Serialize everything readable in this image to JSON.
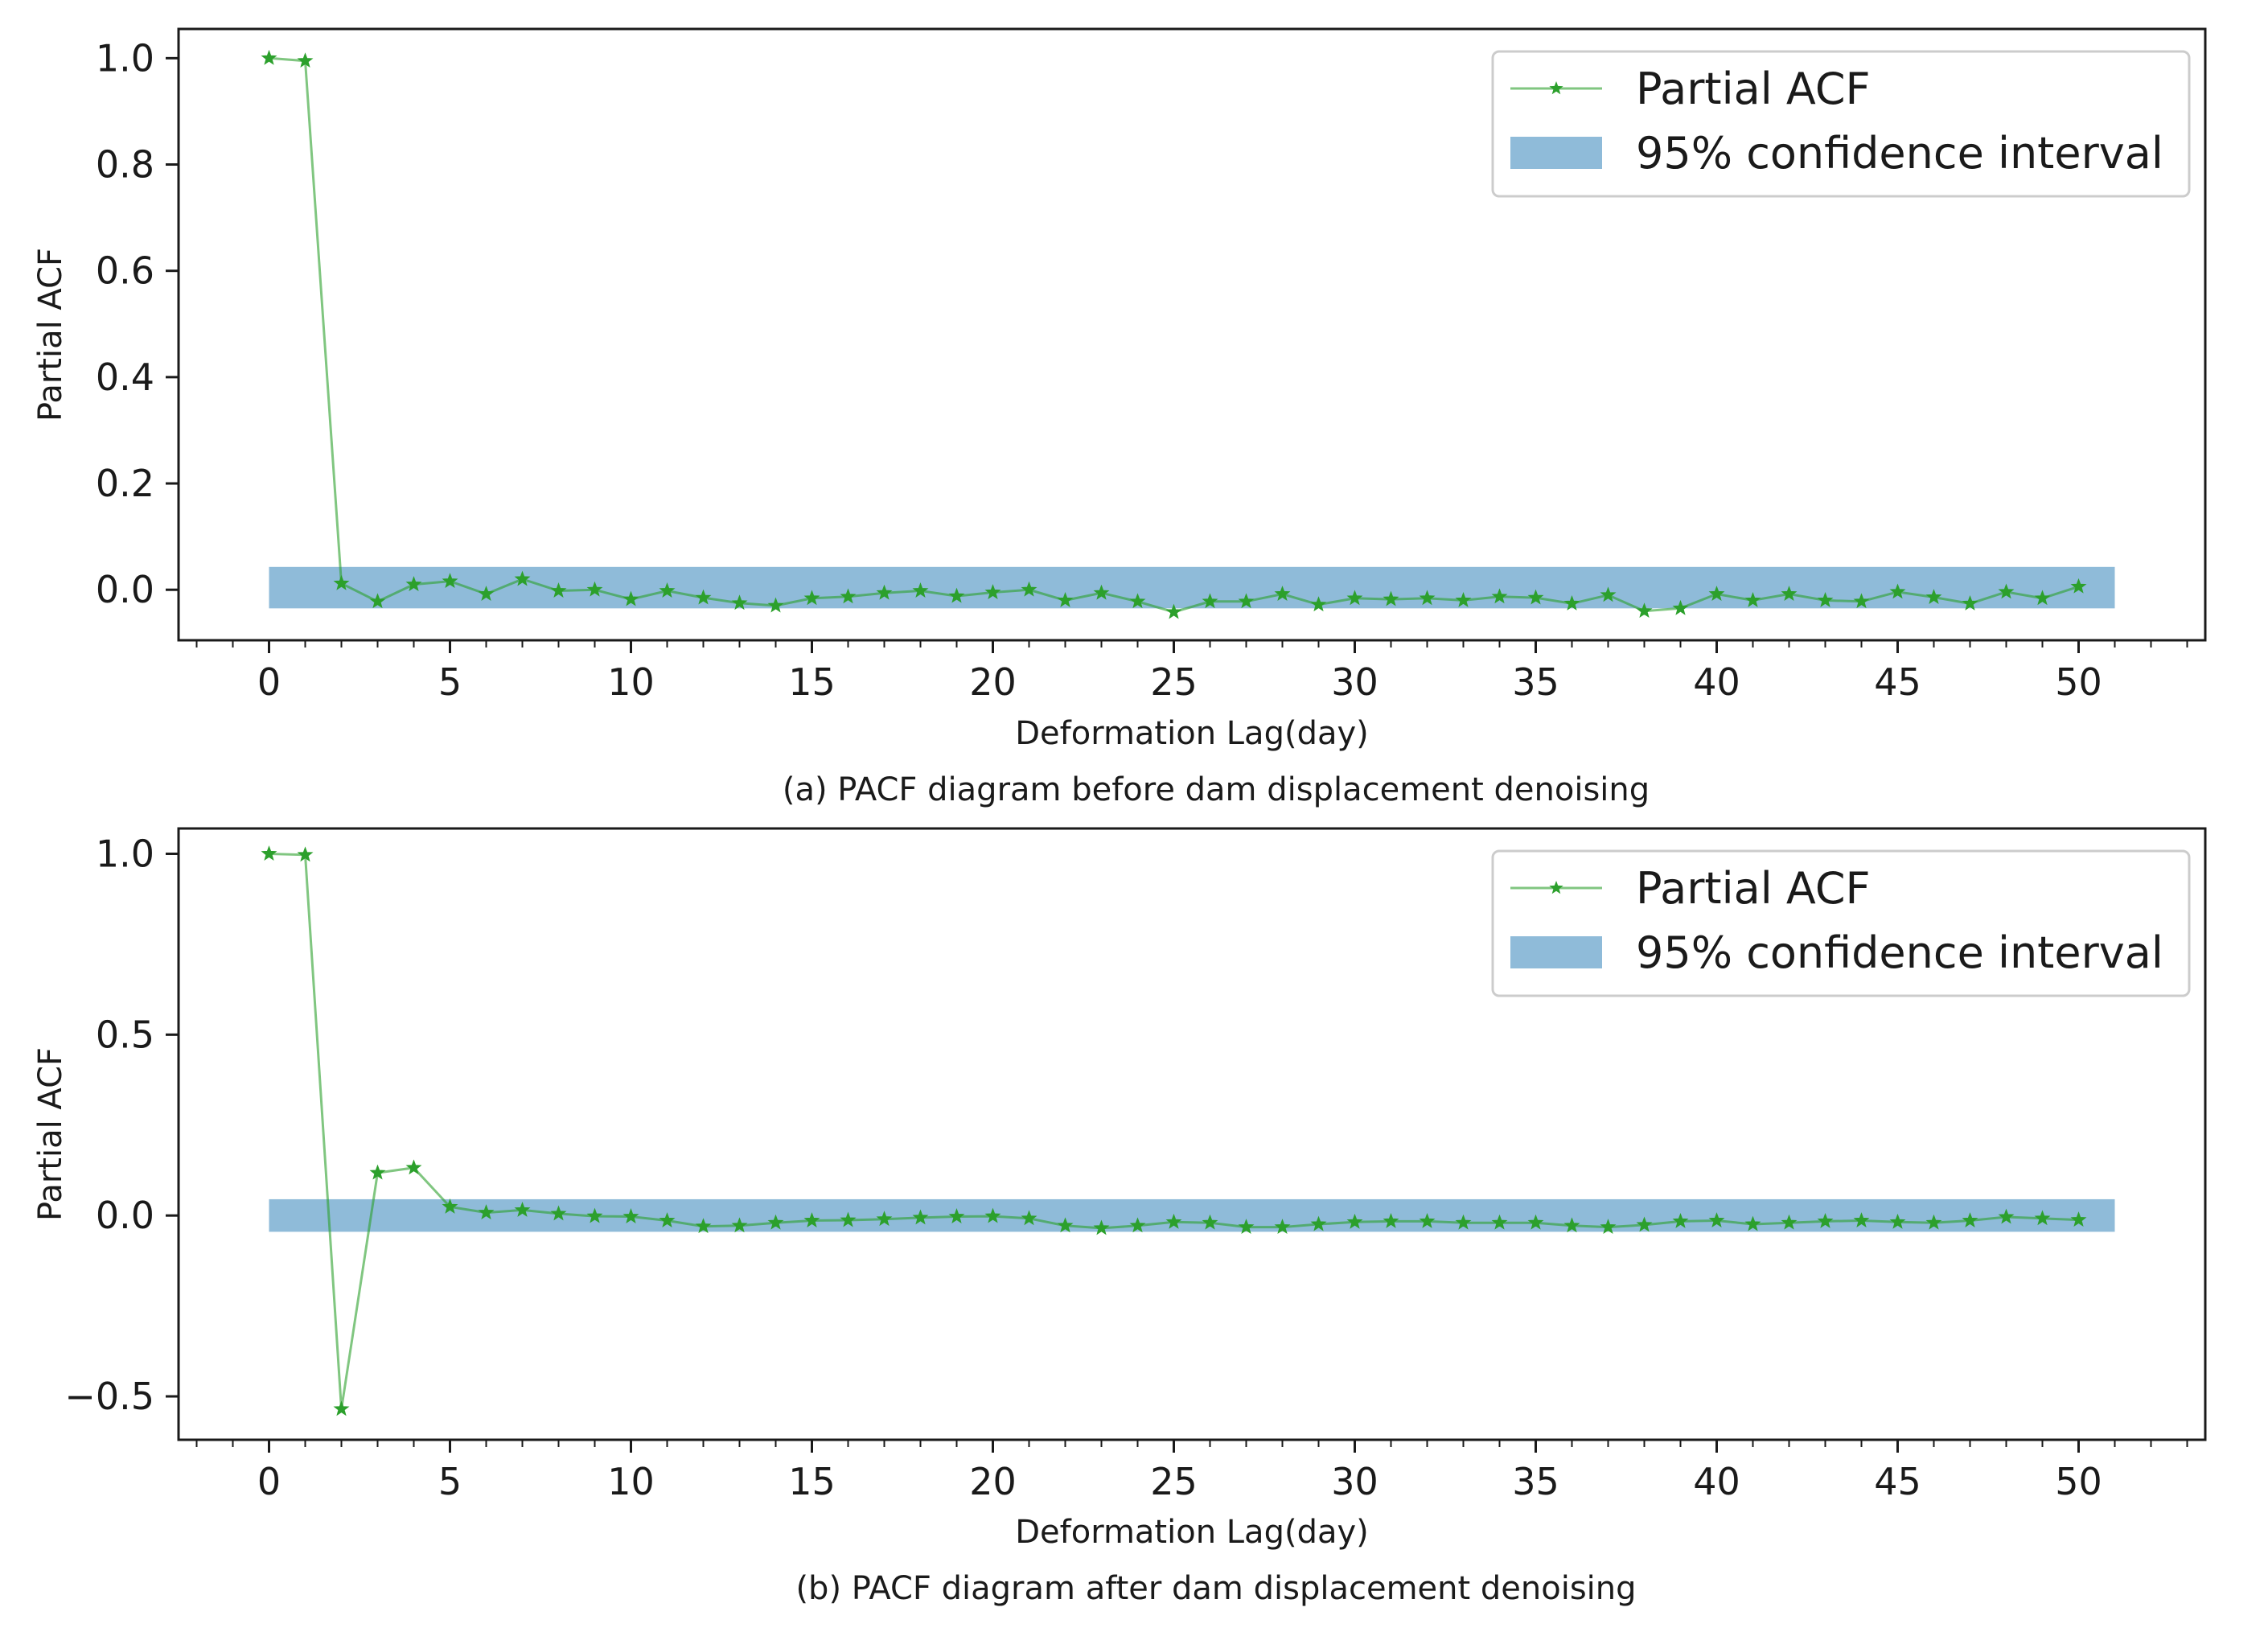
{
  "chart_data": [
    {
      "type": "line",
      "caption": "(a) PACF diagram before dam displacement denoising",
      "xlabel": "Deformation Lag(day)",
      "ylabel": "Partial ACF",
      "xlim": [
        -2.5,
        53.5
      ],
      "ylim": [
        -0.095,
        1.055
      ],
      "xticks": [
        0,
        5,
        10,
        15,
        20,
        25,
        30,
        35,
        40,
        45,
        50
      ],
      "xtick_labels": [
        "0",
        "5",
        "10",
        "15",
        "20",
        "25",
        "30",
        "35",
        "40",
        "45",
        "50"
      ],
      "yticks": [
        0.0,
        0.2,
        0.4,
        0.6,
        0.8,
        1.0
      ],
      "ytick_labels": [
        "0.0",
        "0.2",
        "0.4",
        "0.6",
        "0.8",
        "1.0"
      ],
      "legend_position": "top-right",
      "grid": false,
      "series": [
        {
          "name": "Partial ACF",
          "color": "#2ca02c",
          "marker": "star",
          "x": [
            0,
            1,
            2,
            3,
            4,
            5,
            6,
            7,
            8,
            9,
            10,
            11,
            12,
            13,
            14,
            15,
            16,
            17,
            18,
            19,
            20,
            21,
            22,
            23,
            24,
            25,
            26,
            27,
            28,
            29,
            30,
            31,
            32,
            33,
            34,
            35,
            36,
            37,
            38,
            39,
            40,
            41,
            42,
            43,
            44,
            45,
            46,
            47,
            48,
            49,
            50
          ],
          "values": [
            1.0,
            0.995,
            0.012,
            -0.022,
            0.01,
            0.016,
            -0.008,
            0.02,
            -0.002,
            0.0,
            -0.018,
            -0.002,
            -0.015,
            -0.025,
            -0.03,
            -0.016,
            -0.013,
            -0.006,
            -0.002,
            -0.012,
            -0.005,
            0.0,
            -0.02,
            -0.006,
            -0.022,
            -0.042,
            -0.022,
            -0.022,
            -0.008,
            -0.028,
            -0.016,
            -0.018,
            -0.016,
            -0.02,
            -0.013,
            -0.015,
            -0.026,
            -0.01,
            -0.04,
            -0.035,
            -0.008,
            -0.02,
            -0.008,
            -0.02,
            -0.022,
            -0.004,
            -0.014,
            -0.026,
            -0.004,
            -0.016,
            0.006
          ]
        }
      ],
      "confidence_interval": {
        "name": "95% confidence interval",
        "color": "#1f77b4",
        "x_range": [
          0,
          51
        ],
        "lower": -0.035,
        "upper": 0.043
      }
    },
    {
      "type": "line",
      "caption": "(b) PACF diagram after dam displacement denoising",
      "xlabel": "Deformation Lag(day)",
      "ylabel": "Partial ACF",
      "xlim": [
        -2.5,
        53.5
      ],
      "ylim": [
        -0.62,
        1.07
      ],
      "xticks": [
        0,
        5,
        10,
        15,
        20,
        25,
        30,
        35,
        40,
        45,
        50
      ],
      "xtick_labels": [
        "0",
        "5",
        "10",
        "15",
        "20",
        "25",
        "30",
        "35",
        "40",
        "45",
        "50"
      ],
      "yticks": [
        -0.5,
        0.0,
        0.5,
        1.0
      ],
      "ytick_labels": [
        "−0.5",
        "0.0",
        "0.5",
        "1.0"
      ],
      "legend_position": "top-right",
      "grid": false,
      "series": [
        {
          "name": "Partial ACF",
          "color": "#2ca02c",
          "marker": "star",
          "x": [
            0,
            1,
            2,
            3,
            4,
            5,
            6,
            7,
            8,
            9,
            10,
            11,
            12,
            13,
            14,
            15,
            16,
            17,
            18,
            19,
            20,
            21,
            22,
            23,
            24,
            25,
            26,
            27,
            28,
            29,
            30,
            31,
            32,
            33,
            34,
            35,
            36,
            37,
            38,
            39,
            40,
            41,
            42,
            43,
            44,
            45,
            46,
            47,
            48,
            49,
            50
          ],
          "values": [
            1.0,
            0.997,
            -0.535,
            0.118,
            0.132,
            0.024,
            0.008,
            0.015,
            0.005,
            -0.002,
            -0.003,
            -0.014,
            -0.03,
            -0.028,
            -0.02,
            -0.014,
            -0.013,
            -0.01,
            -0.006,
            -0.003,
            -0.002,
            -0.008,
            -0.028,
            -0.035,
            -0.028,
            -0.018,
            -0.02,
            -0.032,
            -0.032,
            -0.024,
            -0.018,
            -0.016,
            -0.016,
            -0.02,
            -0.02,
            -0.02,
            -0.028,
            -0.032,
            -0.026,
            -0.016,
            -0.014,
            -0.024,
            -0.02,
            -0.016,
            -0.014,
            -0.018,
            -0.02,
            -0.014,
            -0.004,
            -0.008,
            -0.012
          ]
        }
      ],
      "confidence_interval": {
        "name": "95% confidence interval",
        "color": "#1f77b4",
        "x_range": [
          0,
          51
        ],
        "lower": -0.045,
        "upper": 0.045
      }
    }
  ]
}
